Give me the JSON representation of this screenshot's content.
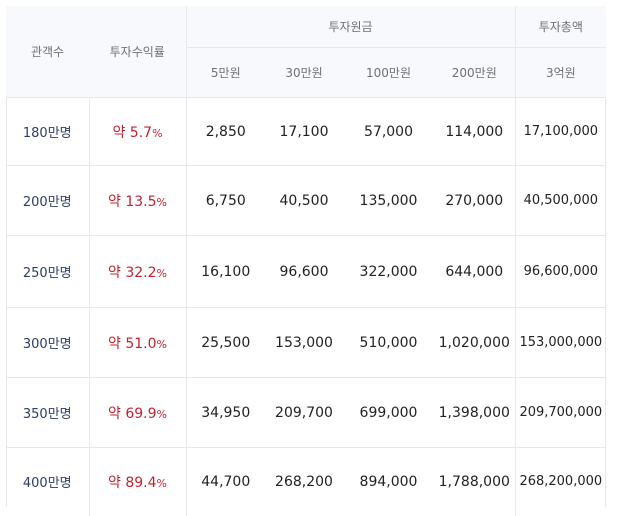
{
  "header": {
    "viewers_label": "관객수",
    "rate_label": "투자수익률",
    "principal_group_label": "투자원금",
    "total_group_label": "투자총액",
    "principal_cols": [
      "5만원",
      "30만원",
      "100만원",
      "200만원"
    ],
    "total_col": "3억원"
  },
  "rows": [
    {
      "viewers": "180만명",
      "rate_prefix": "약 5.7",
      "rate_unit": "%",
      "values": [
        "2,850",
        "17,100",
        "57,000",
        "114,000"
      ],
      "total": "17,100,000"
    },
    {
      "viewers": "200만명",
      "rate_prefix": "약 13.5",
      "rate_unit": "%",
      "values": [
        "6,750",
        "40,500",
        "135,000",
        "270,000"
      ],
      "total": "40,500,000"
    },
    {
      "viewers": "250만명",
      "rate_prefix": "약 32.2",
      "rate_unit": "%",
      "values": [
        "16,100",
        "96,600",
        "322,000",
        "644,000"
      ],
      "total": "96,600,000"
    },
    {
      "viewers": "300만명",
      "rate_prefix": "약 51.0",
      "rate_unit": "%",
      "values": [
        "25,500",
        "153,000",
        "510,000",
        "1,020,000"
      ],
      "total": "153,000,000"
    },
    {
      "viewers": "350만명",
      "rate_prefix": "약 69.9",
      "rate_unit": "%",
      "values": [
        "34,950",
        "209,700",
        "699,000",
        "1,398,000"
      ],
      "total": "209,700,000"
    },
    {
      "viewers": "400만명",
      "rate_prefix": "약 89.4",
      "rate_unit": "%",
      "values": [
        "44,700",
        "268,200",
        "894,000",
        "1,788,000"
      ],
      "total": "268,200,000"
    }
  ]
}
